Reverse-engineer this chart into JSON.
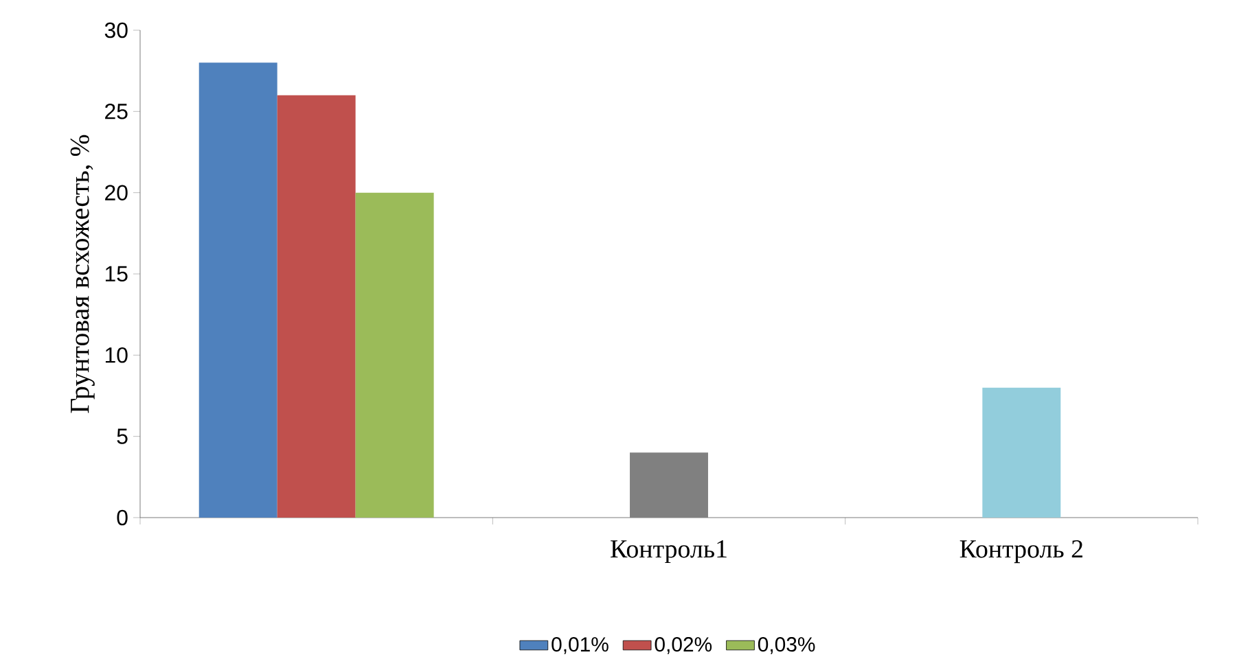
{
  "chart_data": {
    "type": "bar",
    "ylabel": "Грунтовая всхожесть, %",
    "categories": [
      null,
      "Контроль1",
      "Контроль 2"
    ],
    "series": [
      {
        "name": "0,01%",
        "color": "#4f81bd",
        "values": [
          28,
          null,
          null
        ]
      },
      {
        "name": "0,02%",
        "color": "#c0504d",
        "colors": [
          "#c0504d",
          "#808080",
          "#92cddc"
        ],
        "values": [
          26,
          4,
          8
        ]
      },
      {
        "name": "0,03%",
        "color": "#9bbb59",
        "values": [
          20,
          null,
          null
        ]
      }
    ],
    "ylim": [
      0,
      30
    ],
    "yticks": [
      0,
      5,
      10,
      15,
      20,
      25,
      30
    ],
    "grid": false,
    "legend": "bottom"
  }
}
